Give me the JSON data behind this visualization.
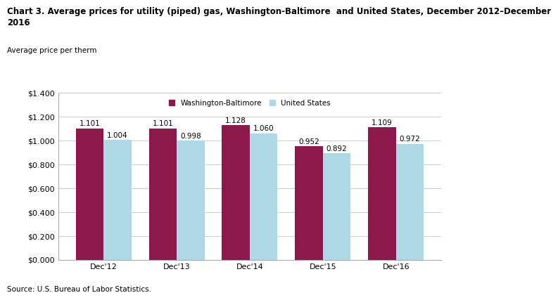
{
  "title_line1": "Chart 3. Average prices for utility (piped) gas, Washington-Baltimore  and United States, December 2012–December",
  "title_line2": "2016",
  "subtitle": "Average price per therm",
  "source": "Source: U.S. Bureau of Labor Statistics.",
  "categories": [
    "Dec'12",
    "Dec'13",
    "Dec'14",
    "Dec'15",
    "Dec'16"
  ],
  "wb_values": [
    1.101,
    1.101,
    1.128,
    0.952,
    1.109
  ],
  "us_values": [
    1.004,
    0.998,
    1.06,
    0.892,
    0.972
  ],
  "wb_color": "#8B1A4A",
  "us_color": "#ADD8E6",
  "ylim": [
    0,
    1.4
  ],
  "yticks": [
    0.0,
    0.2,
    0.4,
    0.6,
    0.8,
    1.0,
    1.2,
    1.4
  ],
  "ytick_labels": [
    "$0.000",
    "$0.200",
    "$0.400",
    "$0.600",
    "$0.800",
    "$1.000",
    "$1.200",
    "$1.400"
  ],
  "bar_width": 0.38,
  "legend_wb": "Washington-Baltimore",
  "legend_us": "United States",
  "title_fontsize": 8.5,
  "subtitle_fontsize": 7.5,
  "tick_fontsize": 8,
  "label_fontsize": 7.5,
  "source_fontsize": 7.5,
  "legend_fontsize": 7.5,
  "background_color": "#ffffff",
  "grid_color": "#cccccc",
  "spine_color": "#aaaaaa"
}
